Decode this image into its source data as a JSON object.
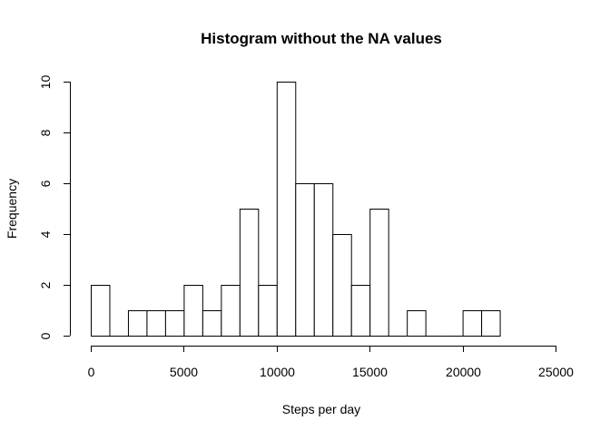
{
  "chart_data": {
    "type": "bar",
    "title": "Histogram without the NA values",
    "xlabel": "Steps per day",
    "ylabel": "Frequency",
    "bin_width": 1000,
    "bins": [
      {
        "start": 0,
        "end": 1000,
        "count": 2
      },
      {
        "start": 1000,
        "end": 2000,
        "count": 0
      },
      {
        "start": 2000,
        "end": 3000,
        "count": 1
      },
      {
        "start": 3000,
        "end": 4000,
        "count": 1
      },
      {
        "start": 4000,
        "end": 5000,
        "count": 1
      },
      {
        "start": 5000,
        "end": 6000,
        "count": 2
      },
      {
        "start": 6000,
        "end": 7000,
        "count": 1
      },
      {
        "start": 7000,
        "end": 8000,
        "count": 2
      },
      {
        "start": 8000,
        "end": 9000,
        "count": 5
      },
      {
        "start": 9000,
        "end": 10000,
        "count": 2
      },
      {
        "start": 10000,
        "end": 11000,
        "count": 10
      },
      {
        "start": 11000,
        "end": 12000,
        "count": 6
      },
      {
        "start": 12000,
        "end": 13000,
        "count": 6
      },
      {
        "start": 13000,
        "end": 14000,
        "count": 4
      },
      {
        "start": 14000,
        "end": 15000,
        "count": 2
      },
      {
        "start": 15000,
        "end": 16000,
        "count": 5
      },
      {
        "start": 16000,
        "end": 17000,
        "count": 0
      },
      {
        "start": 17000,
        "end": 18000,
        "count": 1
      },
      {
        "start": 18000,
        "end": 19000,
        "count": 0
      },
      {
        "start": 19000,
        "end": 20000,
        "count": 0
      },
      {
        "start": 20000,
        "end": 21000,
        "count": 1
      },
      {
        "start": 21000,
        "end": 22000,
        "count": 1
      }
    ],
    "x_ticks": [
      {
        "value": 0,
        "label": "0"
      },
      {
        "value": 5000,
        "label": "5000"
      },
      {
        "value": 10000,
        "label": "10000"
      },
      {
        "value": 15000,
        "label": "15000"
      },
      {
        "value": 20000,
        "label": "20000"
      },
      {
        "value": 25000,
        "label": "25000"
      }
    ],
    "y_ticks": [
      {
        "value": 0,
        "label": "0"
      },
      {
        "value": 2,
        "label": "2"
      },
      {
        "value": 4,
        "label": "4"
      },
      {
        "value": 6,
        "label": "6"
      },
      {
        "value": 8,
        "label": "8"
      },
      {
        "value": 10,
        "label": "10"
      }
    ],
    "xlim": [
      0,
      25000
    ],
    "ylim": [
      0,
      10
    ],
    "grid": false,
    "bar_fill": "#ffffff",
    "bar_stroke": "#000000"
  }
}
